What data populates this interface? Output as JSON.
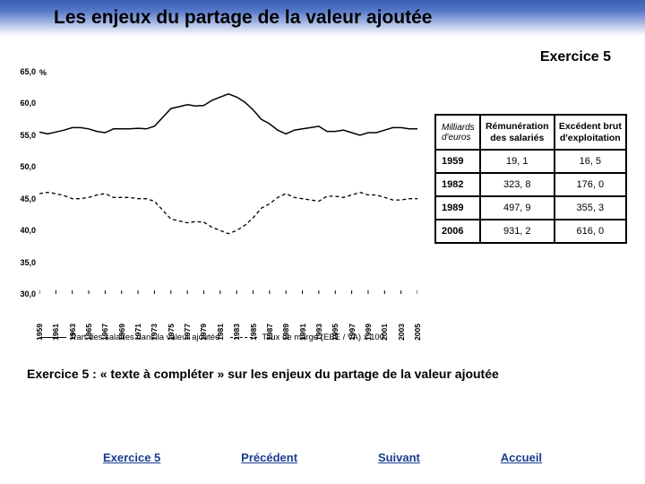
{
  "header": {
    "title": "Les enjeux du partage de la valeur ajoutée"
  },
  "exercice_label": "Exercice 5",
  "chart": {
    "type": "line",
    "y_unit": "%",
    "ylim": [
      30,
      65
    ],
    "ytick_step": 5,
    "yticks": [
      "30,0",
      "35,0",
      "40,0",
      "45,0",
      "50,0",
      "55,0",
      "60,0",
      "65,0"
    ],
    "xlim": [
      1959,
      2005
    ],
    "xticks": [
      1959,
      1961,
      1963,
      1965,
      1967,
      1969,
      1971,
      1973,
      1975,
      1977,
      1979,
      1981,
      1983,
      1985,
      1987,
      1989,
      1991,
      1993,
      1995,
      1997,
      1999,
      2001,
      2003,
      2005
    ],
    "series": [
      {
        "name": "salaires",
        "label": "Part des salaires dans la valeur ajoutée",
        "style": "solid",
        "color": "#000000",
        "width": 1.5,
        "points": [
          [
            1959,
            55.5
          ],
          [
            1960,
            55.2
          ],
          [
            1961,
            55.5
          ],
          [
            1962,
            55.8
          ],
          [
            1963,
            56.2
          ],
          [
            1964,
            56.2
          ],
          [
            1965,
            56.0
          ],
          [
            1966,
            55.6
          ],
          [
            1967,
            55.4
          ],
          [
            1968,
            56.0
          ],
          [
            1969,
            56.0
          ],
          [
            1970,
            56.0
          ],
          [
            1971,
            56.1
          ],
          [
            1972,
            56.0
          ],
          [
            1973,
            56.4
          ],
          [
            1974,
            57.8
          ],
          [
            1975,
            59.2
          ],
          [
            1976,
            59.5
          ],
          [
            1977,
            59.8
          ],
          [
            1978,
            59.6
          ],
          [
            1979,
            59.7
          ],
          [
            1980,
            60.5
          ],
          [
            1981,
            61.0
          ],
          [
            1982,
            61.5
          ],
          [
            1983,
            61.0
          ],
          [
            1984,
            60.2
          ],
          [
            1985,
            59.0
          ],
          [
            1986,
            57.5
          ],
          [
            1987,
            56.8
          ],
          [
            1988,
            55.8
          ],
          [
            1989,
            55.2
          ],
          [
            1990,
            55.8
          ],
          [
            1991,
            56.0
          ],
          [
            1992,
            56.2
          ],
          [
            1993,
            56.4
          ],
          [
            1994,
            55.6
          ],
          [
            1995,
            55.6
          ],
          [
            1996,
            55.8
          ],
          [
            1997,
            55.4
          ],
          [
            1998,
            55.0
          ],
          [
            1999,
            55.4
          ],
          [
            2000,
            55.4
          ],
          [
            2001,
            55.8
          ],
          [
            2002,
            56.2
          ],
          [
            2003,
            56.2
          ],
          [
            2004,
            56.0
          ],
          [
            2005,
            56.0
          ]
        ]
      },
      {
        "name": "taux_marge",
        "label": "Taux de marge (EBE / VA) x 100",
        "style": "dashed",
        "color": "#000000",
        "width": 1.3,
        "points": [
          [
            1959,
            45.8
          ],
          [
            1960,
            46.0
          ],
          [
            1961,
            45.8
          ],
          [
            1962,
            45.5
          ],
          [
            1963,
            45.0
          ],
          [
            1964,
            45.0
          ],
          [
            1965,
            45.2
          ],
          [
            1966,
            45.6
          ],
          [
            1967,
            45.8
          ],
          [
            1968,
            45.2
          ],
          [
            1969,
            45.2
          ],
          [
            1970,
            45.2
          ],
          [
            1971,
            45.0
          ],
          [
            1972,
            45.0
          ],
          [
            1973,
            44.6
          ],
          [
            1974,
            43.2
          ],
          [
            1975,
            41.8
          ],
          [
            1976,
            41.5
          ],
          [
            1977,
            41.2
          ],
          [
            1978,
            41.4
          ],
          [
            1979,
            41.3
          ],
          [
            1980,
            40.5
          ],
          [
            1981,
            40.0
          ],
          [
            1982,
            39.5
          ],
          [
            1983,
            40.0
          ],
          [
            1984,
            40.8
          ],
          [
            1985,
            42.0
          ],
          [
            1986,
            43.5
          ],
          [
            1987,
            44.2
          ],
          [
            1988,
            45.2
          ],
          [
            1989,
            45.8
          ],
          [
            1990,
            45.2
          ],
          [
            1991,
            45.0
          ],
          [
            1992,
            44.8
          ],
          [
            1993,
            44.6
          ],
          [
            1994,
            45.4
          ],
          [
            1995,
            45.4
          ],
          [
            1996,
            45.2
          ],
          [
            1997,
            45.6
          ],
          [
            1998,
            46.0
          ],
          [
            1999,
            45.6
          ],
          [
            2000,
            45.6
          ],
          [
            2001,
            45.2
          ],
          [
            2002,
            44.8
          ],
          [
            2003,
            44.8
          ],
          [
            2004,
            45.0
          ],
          [
            2005,
            45.0
          ]
        ]
      }
    ],
    "background_color": "#ffffff",
    "grid_color": "#999999",
    "tick_color": "#000000",
    "tick_fontsize": 9
  },
  "table": {
    "unit_header": "Milliards d'euros",
    "columns": [
      "Rémunération des salariés",
      "Excédent brut d'exploitation"
    ],
    "rows": [
      {
        "year": "1959",
        "remuneration": "19, 1",
        "excedent": "16, 5"
      },
      {
        "year": "1982",
        "remuneration": "323, 8",
        "excedent": "176, 0"
      },
      {
        "year": "1989",
        "remuneration": "497, 9",
        "excedent": "355, 3"
      },
      {
        "year": "2006",
        "remuneration": "931, 2",
        "excedent": "616, 0"
      }
    ]
  },
  "exercise_text": "Exercice 5 : « texte à compléter » sur les enjeux du partage de la valeur ajoutée",
  "nav": {
    "exercice": "Exercice 5",
    "precedent": "Précédent",
    "suivant": "Suivant",
    "accueil": "Accueil"
  }
}
